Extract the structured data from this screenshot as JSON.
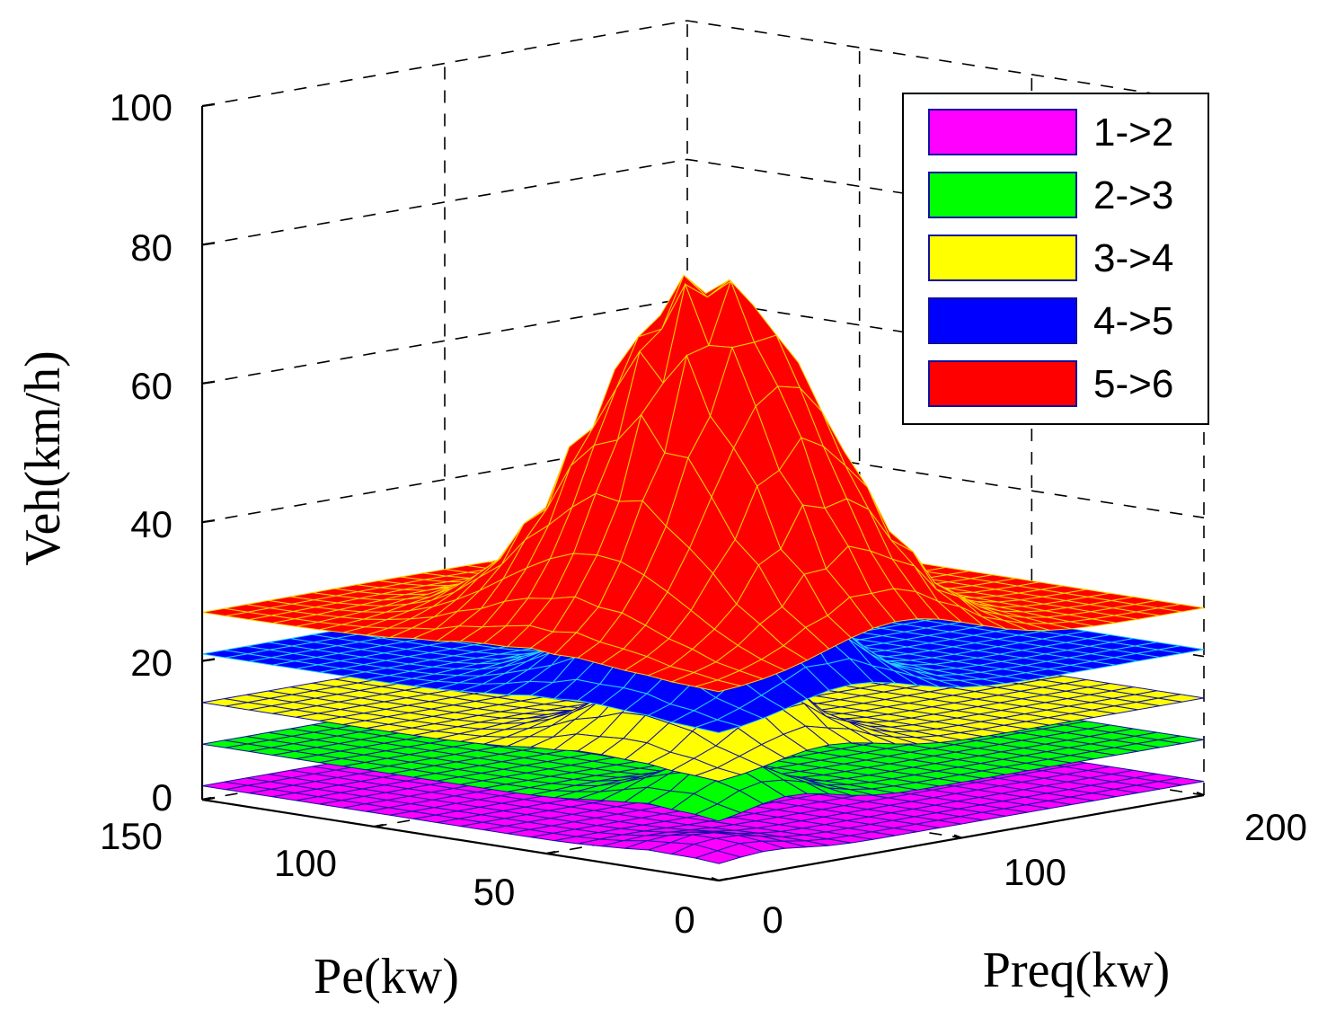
{
  "chart_data": {
    "type": "surface3d",
    "title": "",
    "zlabel": "Veh(km/h)",
    "xlabel": "Pe(kw)",
    "ylabel": "Preq(kw)",
    "zlim": [
      0,
      100
    ],
    "pe_lim": [
      0,
      150
    ],
    "preq_lim": [
      0,
      200
    ],
    "z_ticks": [
      "0",
      "20",
      "40",
      "60",
      "80",
      "100"
    ],
    "pe_ticks": [
      "150",
      "100",
      "50",
      "0"
    ],
    "preq_ticks": [
      "0",
      "100",
      "200"
    ],
    "grid": true,
    "legend_position": "top-right",
    "series": [
      {
        "name": "1->2",
        "color": "#ff00ff",
        "edge": "#1010a0",
        "base": 2,
        "peak": 4,
        "peak_pe": 15,
        "peak_preq": 20
      },
      {
        "name": "2->3",
        "color": "#00ff00",
        "edge": "#1010a0",
        "base": 8,
        "peak": 14,
        "peak_pe": 20,
        "peak_preq": 30
      },
      {
        "name": "3->4",
        "color": "#ffff00",
        "edge": "#1010a0",
        "base": 14,
        "peak": 27,
        "peak_pe": 35,
        "peak_preq": 45
      },
      {
        "name": "4->5",
        "color": "#0000ff",
        "edge": "#22d0ff",
        "base": 21,
        "peak": 43,
        "peak_pe": 40,
        "peak_preq": 55
      },
      {
        "name": "5->6",
        "color": "#ff0000",
        "edge": "#ffd000",
        "base": 27,
        "peak": 78,
        "peak_pe": 55,
        "peak_preq": 75
      }
    ]
  }
}
